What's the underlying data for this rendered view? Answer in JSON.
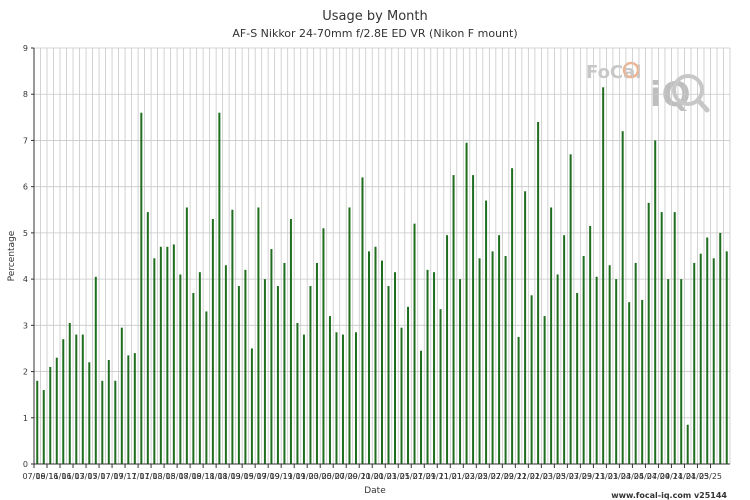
{
  "chart_data": {
    "type": "bar",
    "title": "Usage by Month",
    "subtitle": "AF-S Nikkor 24-70mm f/2.8E ED VR (Nikon F mount)",
    "xlabel": "Date",
    "ylabel": "Percentage",
    "ylim": [
      0,
      9
    ],
    "yticks": [
      "0",
      "1",
      "2",
      "3",
      "4",
      "5",
      "6",
      "7",
      "8",
      "9"
    ],
    "x_tick_labels": [
      "07/16",
      "09/16",
      "11/16",
      "01/17",
      "03/17",
      "05/17",
      "07/17",
      "09/17",
      "11/17",
      "01/18",
      "03/18",
      "05/18",
      "07/18",
      "09/18",
      "11/18",
      "01/19",
      "03/19",
      "05/19",
      "07/19",
      "09/19",
      "11/19",
      "01/20",
      "03/20",
      "05/20",
      "07/20",
      "09/20",
      "11/20",
      "01/21",
      "03/21",
      "05/21",
      "07/21",
      "09/21",
      "11/21",
      "01/22",
      "03/22",
      "05/22",
      "07/22",
      "09/22",
      "11/22",
      "01/23",
      "03/23",
      "05/23",
      "07/23",
      "09/23",
      "11/23",
      "01/24",
      "03/24",
      "05/24",
      "07/24",
      "09/24",
      "11/24",
      "01/25",
      "03/25"
    ],
    "grid": true,
    "bar_color": "#1f6e1f",
    "values": [
      1.8,
      1.6,
      2.1,
      2.3,
      2.7,
      3.05,
      2.8,
      2.8,
      2.2,
      4.05,
      1.8,
      2.25,
      1.8,
      2.95,
      2.35,
      2.4,
      7.6,
      5.45,
      4.45,
      4.7,
      4.7,
      4.75,
      4.1,
      5.55,
      3.7,
      4.15,
      3.3,
      5.3,
      7.6,
      4.3,
      5.5,
      3.85,
      4.2,
      2.5,
      5.55,
      4.0,
      4.65,
      3.85,
      4.35,
      5.3,
      3.05,
      2.8,
      3.85,
      4.35,
      5.1,
      3.2,
      2.85,
      2.8,
      5.55,
      2.85,
      6.2,
      4.6,
      4.7,
      4.4,
      3.85,
      4.15,
      2.95,
      3.4,
      5.2,
      2.45,
      4.2,
      4.15,
      3.35,
      4.95,
      6.25,
      4.0,
      6.95,
      6.25,
      4.45,
      5.7,
      4.6,
      4.95,
      4.5,
      6.4,
      2.75,
      5.9,
      3.65,
      7.4,
      3.2,
      5.55,
      4.1,
      4.95,
      6.7,
      3.7,
      4.5,
      5.15,
      4.05,
      8.15,
      4.3,
      4.0,
      7.2,
      3.5,
      4.35,
      3.55,
      5.65,
      7.0,
      5.45,
      4.0,
      5.45,
      4.0,
      0.85,
      4.35,
      4.55,
      4.9,
      4.45,
      5.0,
      4.6
    ]
  },
  "footer": {
    "credit": "www.focal-iq.com  v25144"
  },
  "logo": {
    "text_top": "FoCal",
    "text_bottom": "iQ"
  },
  "colors": {
    "bar": "#1f6e1f",
    "grid": "#c8c8c8",
    "axis": "#333333"
  }
}
